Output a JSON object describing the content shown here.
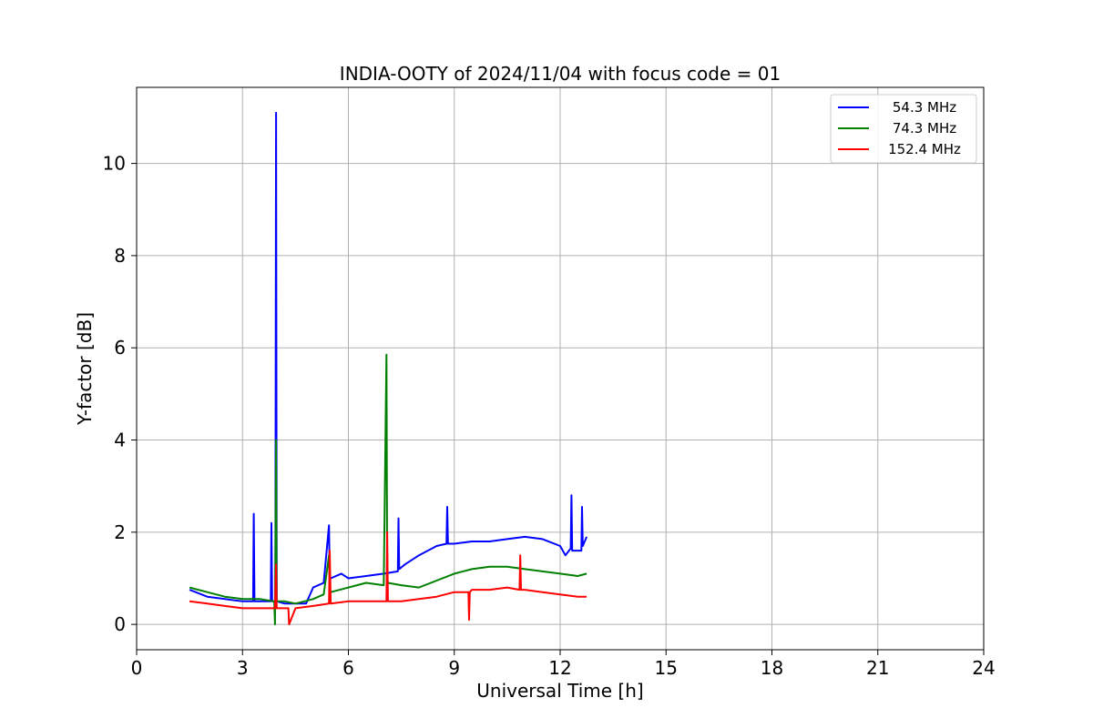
{
  "chart_data": {
    "type": "line",
    "title": "INDIA-OOTY of 2024/11/04 with focus code = 01",
    "xlabel": "Universal Time [h]",
    "ylabel": "Y-factor [dB]",
    "xlim": [
      0,
      24
    ],
    "ylim": [
      -0.55,
      11.65
    ],
    "xticks": [
      0,
      3,
      6,
      9,
      12,
      15,
      18,
      21,
      24
    ],
    "yticks": [
      0,
      2,
      4,
      6,
      8,
      10
    ],
    "grid": true,
    "legend_position": "top-right",
    "series": [
      {
        "name": "54.3 MHz",
        "color": "#0000ff",
        "x": [
          1.5,
          2.0,
          2.5,
          3.0,
          3.3,
          3.32,
          3.34,
          3.5,
          3.8,
          3.82,
          3.84,
          3.93,
          3.95,
          3.97,
          4.2,
          4.5,
          4.8,
          5.0,
          5.3,
          5.45,
          5.47,
          5.5,
          5.8,
          6.0,
          6.5,
          7.0,
          7.4,
          7.42,
          7.44,
          7.6,
          8.0,
          8.5,
          8.78,
          8.8,
          8.82,
          9.0,
          9.5,
          10.0,
          10.5,
          11.0,
          11.5,
          12.0,
          12.15,
          12.3,
          12.32,
          12.34,
          12.6,
          12.62,
          12.64,
          12.75
        ],
        "y": [
          0.75,
          0.6,
          0.55,
          0.5,
          0.5,
          2.4,
          0.5,
          0.5,
          0.5,
          2.2,
          0.5,
          0.5,
          11.1,
          0.5,
          0.45,
          0.45,
          0.45,
          0.8,
          0.9,
          2.15,
          0.95,
          1.0,
          1.1,
          1.0,
          1.05,
          1.1,
          1.15,
          2.3,
          1.2,
          1.3,
          1.5,
          1.7,
          1.75,
          2.55,
          1.75,
          1.75,
          1.8,
          1.8,
          1.85,
          1.9,
          1.85,
          1.7,
          1.5,
          1.65,
          2.8,
          1.6,
          1.6,
          2.55,
          1.7,
          1.9
        ]
      },
      {
        "name": "74.3 MHz",
        "color": "#008000",
        "x": [
          1.5,
          2.0,
          2.5,
          3.0,
          3.5,
          3.9,
          3.92,
          3.95,
          3.97,
          4.2,
          4.5,
          5.0,
          5.3,
          5.45,
          5.47,
          5.5,
          6.0,
          6.5,
          7.0,
          7.08,
          7.1,
          7.12,
          7.5,
          8.0,
          8.5,
          9.0,
          9.5,
          10.0,
          10.5,
          11.0,
          11.5,
          12.0,
          12.5,
          12.75
        ],
        "y": [
          0.8,
          0.7,
          0.6,
          0.55,
          0.55,
          0.5,
          0.0,
          4.0,
          0.5,
          0.5,
          0.45,
          0.55,
          0.65,
          1.5,
          0.7,
          0.7,
          0.8,
          0.9,
          0.85,
          5.85,
          1.0,
          0.9,
          0.85,
          0.8,
          0.95,
          1.1,
          1.2,
          1.25,
          1.25,
          1.2,
          1.15,
          1.1,
          1.05,
          1.1
        ]
      },
      {
        "name": "152.4 MHz",
        "color": "#ff0000",
        "x": [
          1.5,
          2.0,
          2.5,
          3.0,
          3.5,
          3.92,
          3.95,
          3.97,
          4.2,
          4.3,
          4.32,
          4.5,
          5.0,
          5.45,
          5.47,
          5.5,
          6.0,
          6.5,
          7.0,
          7.08,
          7.1,
          7.12,
          7.5,
          8.0,
          8.5,
          9.0,
          9.4,
          9.42,
          9.44,
          9.5,
          10.0,
          10.5,
          10.85,
          10.87,
          10.89,
          11.0,
          11.5,
          12.0,
          12.5,
          12.75
        ],
        "y": [
          0.5,
          0.45,
          0.4,
          0.35,
          0.35,
          0.35,
          1.3,
          0.35,
          0.35,
          0.35,
          0.0,
          0.35,
          0.4,
          0.45,
          1.6,
          0.45,
          0.5,
          0.5,
          0.5,
          0.5,
          2.0,
          0.5,
          0.5,
          0.55,
          0.6,
          0.7,
          0.7,
          0.1,
          0.7,
          0.75,
          0.75,
          0.8,
          0.75,
          1.5,
          0.75,
          0.75,
          0.7,
          0.65,
          0.6,
          0.6
        ]
      }
    ]
  }
}
